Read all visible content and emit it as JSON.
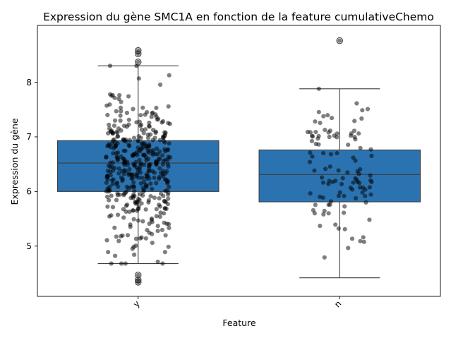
{
  "chart_data": {
    "type": "boxplot",
    "title": "Expression du gène SMC1A en fonction de la feature cumulativeChemo",
    "xlabel": "Feature",
    "ylabel": "Expression du gène",
    "categories": [
      "y",
      "n"
    ],
    "ylim": [
      4.08,
      9.04
    ],
    "yticks": [
      5,
      6,
      7,
      8
    ],
    "box_color": "#2b73b0",
    "point_color": "#000000",
    "boxes": [
      {
        "category": "y",
        "whisker_low": 4.68,
        "q1": 6.0,
        "median": 6.52,
        "q3": 6.93,
        "whisker_high": 8.3,
        "outliers": [
          8.58,
          8.52,
          8.37,
          4.47,
          4.38,
          4.34
        ],
        "n_points": 420
      },
      {
        "category": "n",
        "whisker_low": 4.42,
        "q1": 5.81,
        "median": 6.31,
        "q3": 6.76,
        "whisker_high": 7.88,
        "outliers": [
          8.76
        ],
        "n_points": 110
      }
    ],
    "grid": false,
    "legend": "none"
  }
}
